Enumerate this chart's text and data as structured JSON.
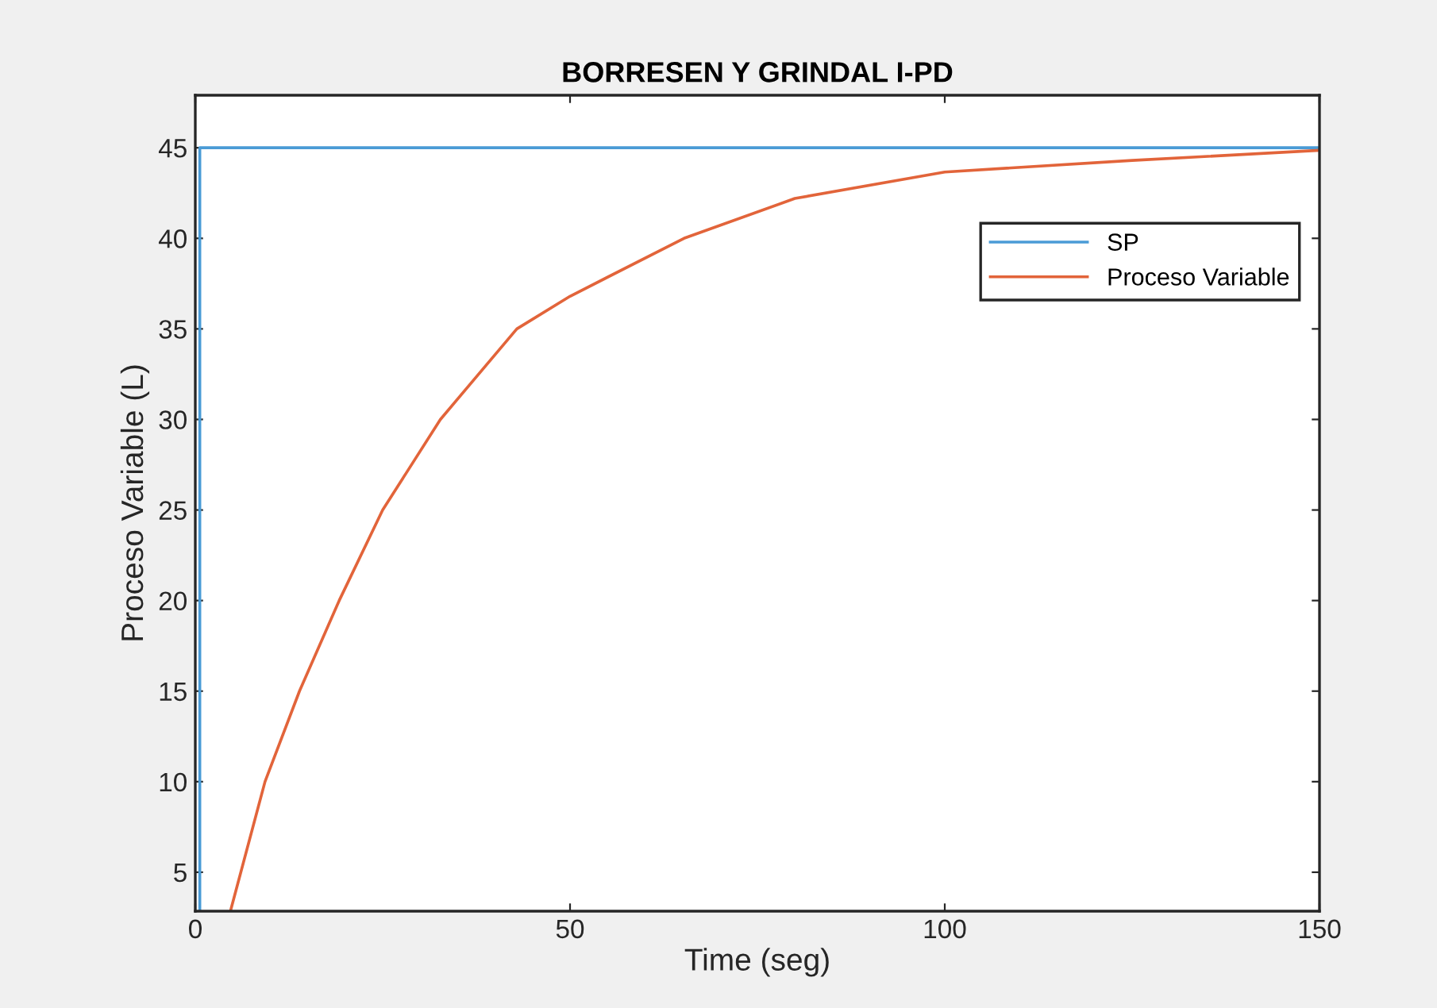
{
  "chart_data": {
    "type": "line",
    "title": "BORRESEN Y GRINDAL I-PD",
    "xlabel": "Time (seg)",
    "ylabel": "Proceso Variable (L)",
    "xlim": [
      0,
      150
    ],
    "ylim": [
      2.85,
      47.9
    ],
    "xticks": [
      0,
      50,
      100,
      150
    ],
    "yticks": [
      5,
      10,
      15,
      20,
      25,
      30,
      35,
      40,
      45
    ],
    "grid": false,
    "legend": "top right",
    "line_style": "solid",
    "marker": "none",
    "series": [
      {
        "name": "SP",
        "color": "#4a9bd6",
        "x": [
          0.6,
          0.6,
          150
        ],
        "values": [
          2.85,
          45,
          45
        ]
      },
      {
        "name": "Proceso Variable",
        "color": "#e2643a",
        "x": [
          4.75,
          9.3,
          13.9,
          19.2,
          25.0,
          32.7,
          42.9,
          50,
          65.2,
          80,
          100,
          125,
          150
        ],
        "values": [
          2.95,
          10,
          15,
          20,
          25,
          30,
          35,
          36.8,
          40,
          42.2,
          43.66,
          44.3,
          44.86
        ]
      }
    ]
  }
}
